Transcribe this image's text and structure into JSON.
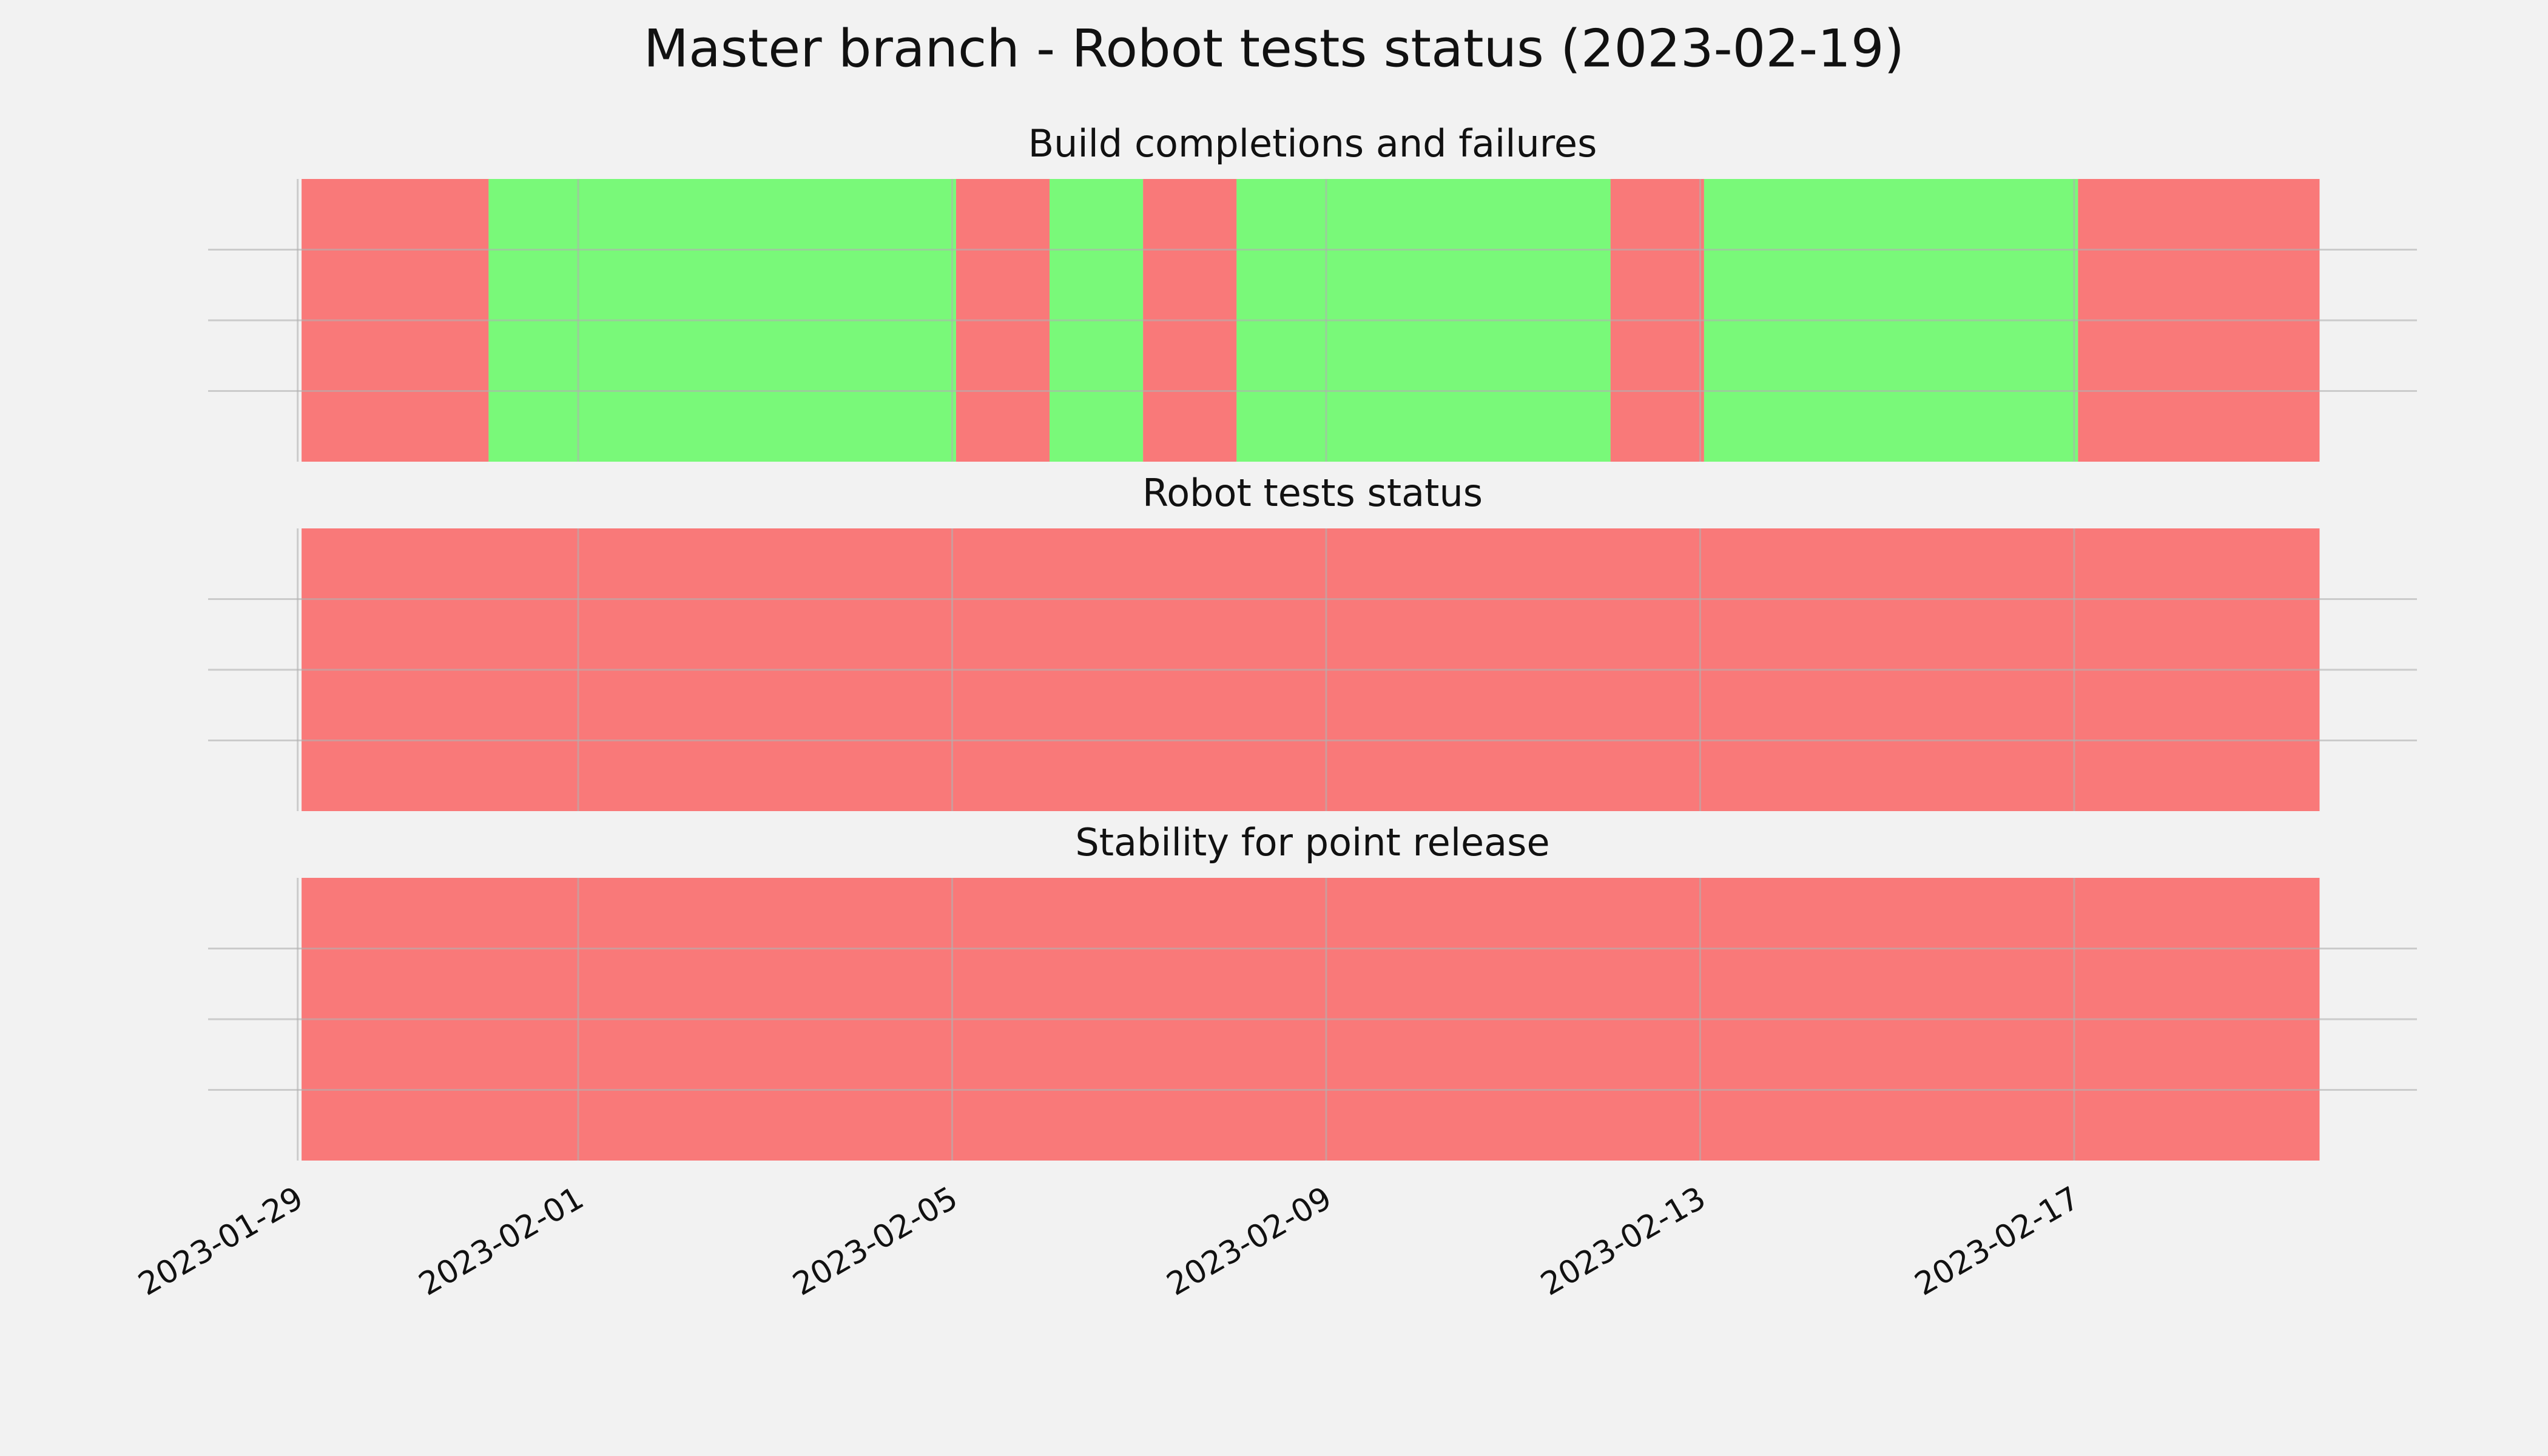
{
  "title": "Master branch - Robot tests status (2023-02-19)",
  "chart_data": [
    {
      "type": "span",
      "title": "Build completions and failures",
      "alpha": 0.5,
      "ylim": [
        0,
        1
      ],
      "yticks": [
        0.25,
        0.5,
        0.75
      ],
      "grid": true,
      "segments": [
        {
          "start": "2023-01-29T01:00",
          "end": "2023-01-31T01:00",
          "color": "#ff0000"
        },
        {
          "start": "2023-01-31T01:00",
          "end": "2023-02-05T01:00",
          "color": "#00ff00"
        },
        {
          "start": "2023-02-05T01:00",
          "end": "2023-02-06T01:00",
          "color": "#ff0000"
        },
        {
          "start": "2023-02-06T01:00",
          "end": "2023-02-07T01:00",
          "color": "#00ff00"
        },
        {
          "start": "2023-02-07T01:00",
          "end": "2023-02-08T01:00",
          "color": "#ff0000"
        },
        {
          "start": "2023-02-08T01:00",
          "end": "2023-02-12T01:00",
          "color": "#00ff00"
        },
        {
          "start": "2023-02-12T01:00",
          "end": "2023-02-13T01:00",
          "color": "#ff0000"
        },
        {
          "start": "2023-02-13T01:00",
          "end": "2023-02-17T01:00",
          "color": "#00ff00"
        },
        {
          "start": "2023-02-17T01:00",
          "end": "2023-02-19T15:00",
          "color": "#ff0000"
        }
      ]
    },
    {
      "type": "span",
      "title": "Robot tests status",
      "alpha": 0.5,
      "ylim": [
        0,
        1
      ],
      "yticks": [
        0.25,
        0.5,
        0.75
      ],
      "grid": true,
      "segments": [
        {
          "start": "2023-01-29T01:00",
          "end": "2023-02-19T15:00",
          "color": "#ff0000"
        }
      ]
    },
    {
      "type": "span",
      "title": "Stability for point release",
      "alpha": 0.5,
      "ylim": [
        0,
        1
      ],
      "yticks": [
        0.25,
        0.5,
        0.75
      ],
      "grid": true,
      "xlim": [
        "2023-01-28T01:00",
        "2023-02-20T16:00"
      ],
      "xticks": [
        "2023-01-29",
        "2023-02-01",
        "2023-02-05",
        "2023-02-09",
        "2023-02-13",
        "2023-02-17"
      ],
      "segments": [
        {
          "start": "2023-01-29T01:00",
          "end": "2023-02-19T15:00",
          "color": "#ff0000"
        }
      ]
    }
  ]
}
